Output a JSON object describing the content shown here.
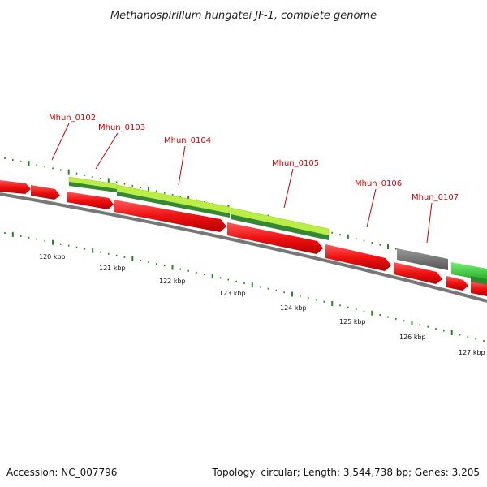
{
  "title": "Methanospirillum hungatei JF-1, complete genome",
  "footer": {
    "accession": "Accession: NC_007796",
    "summary": "Topology: circular; Length: 3,544,738 bp; Genes: 3,205"
  },
  "gene_labels": [
    "Mhun_0102",
    "Mhun_0103",
    "Mhun_0104",
    "Mhun_0105",
    "Mhun_0106",
    "Mhun_0107"
  ],
  "ruler_labels": [
    "120 kbp",
    "121 kbp",
    "122 kbp",
    "123 kbp",
    "124 kbp",
    "125 kbp",
    "126 kbp",
    "127 kbp"
  ],
  "colors": {
    "cds": "#ee1111",
    "gene_light": "#bbee44",
    "gene_dark": "#338833",
    "pseudo": "#777777",
    "bright_green": "#44cc44",
    "backbone": "#888888",
    "tick": "#228822",
    "label": "#cc0000"
  }
}
